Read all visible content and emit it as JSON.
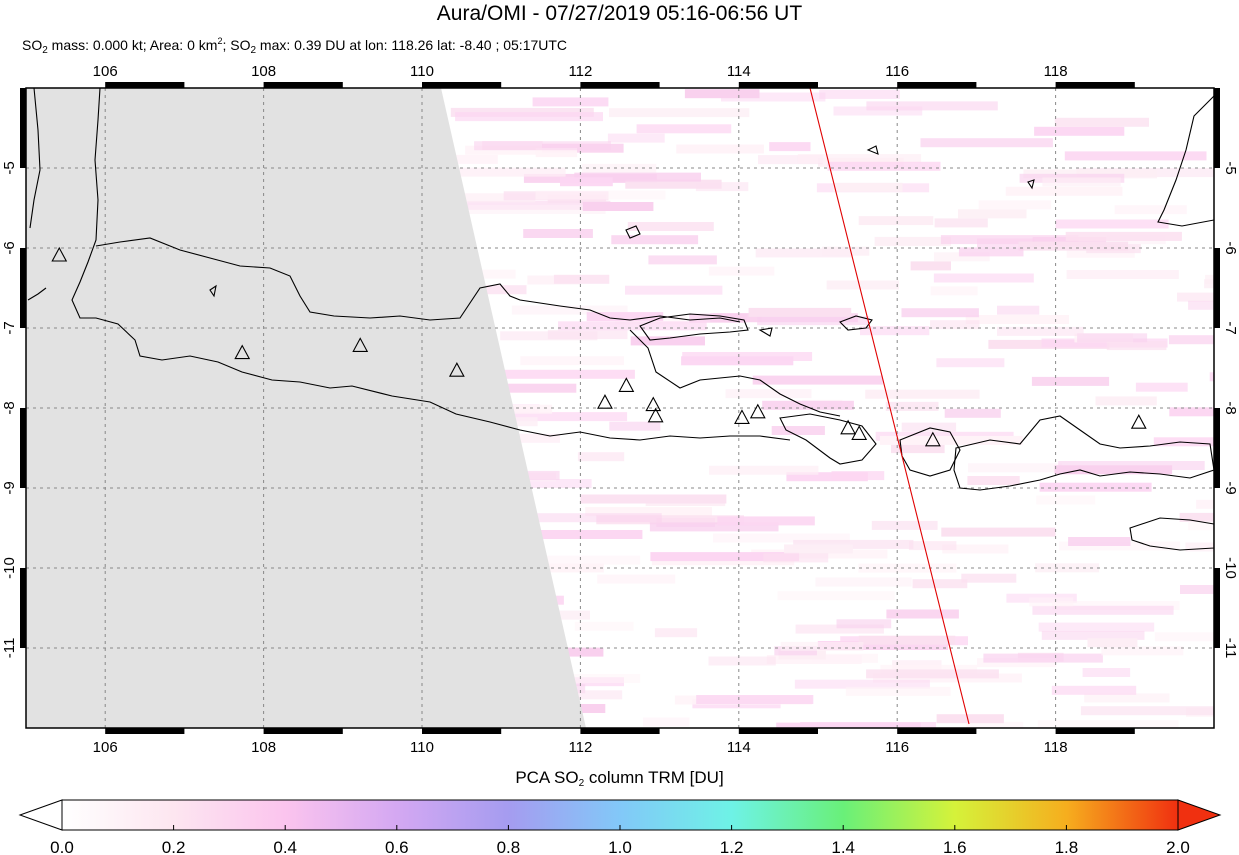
{
  "header": {
    "title": "Aura/OMI - 07/27/2019 05:16-06:56 UT",
    "subtitle": {
      "so2_label": "SO",
      "so2_sub": "2",
      "mass_text": " mass: 0.000 kt; Area: 0 km",
      "area_sup": "2",
      "max_text": "; SO",
      "max_sub": "2",
      "max_rest": " max: 0.39 DU at lon: 118.26 lat: -8.40 ; 05:17UTC"
    }
  },
  "map": {
    "lon_ticks": [
      "106",
      "108",
      "110",
      "112",
      "114",
      "116",
      "118"
    ],
    "lat_ticks": [
      "-5",
      "-6",
      "-7",
      "-8",
      "-9",
      "-10",
      "-11"
    ],
    "lon_range": [
      105.0,
      120.0
    ],
    "lat_range": [
      -12.0,
      -4.0
    ],
    "grid": "dashed gray",
    "no_data_region_color": "#e2e2e2",
    "track_color": "#e00000",
    "volcano_marker": "triangle-icon",
    "volcanoes": [
      {
        "lon": 105.42,
        "lat": -6.1
      },
      {
        "lon": 107.73,
        "lat": -7.32
      },
      {
        "lon": 109.22,
        "lat": -7.23
      },
      {
        "lon": 110.44,
        "lat": -7.54
      },
      {
        "lon": 112.31,
        "lat": -7.94
      },
      {
        "lon": 112.58,
        "lat": -7.73
      },
      {
        "lon": 112.92,
        "lat": -7.97
      },
      {
        "lon": 112.95,
        "lat": -8.11
      },
      {
        "lon": 114.04,
        "lat": -8.13
      },
      {
        "lon": 114.24,
        "lat": -8.06
      },
      {
        "lon": 115.38,
        "lat": -8.26
      },
      {
        "lon": 115.52,
        "lat": -8.33
      },
      {
        "lon": 116.45,
        "lat": -8.41
      },
      {
        "lon": 119.05,
        "lat": -8.19
      }
    ]
  },
  "colorbar": {
    "title_main": "PCA SO",
    "title_sub": "2",
    "title_rest": " column TRM [DU]",
    "ticks": [
      "0.0",
      "0.2",
      "0.4",
      "0.6",
      "0.8",
      "1.0",
      "1.2",
      "1.4",
      "1.6",
      "1.8",
      "2.0"
    ],
    "range": [
      0.0,
      2.0
    ]
  }
}
